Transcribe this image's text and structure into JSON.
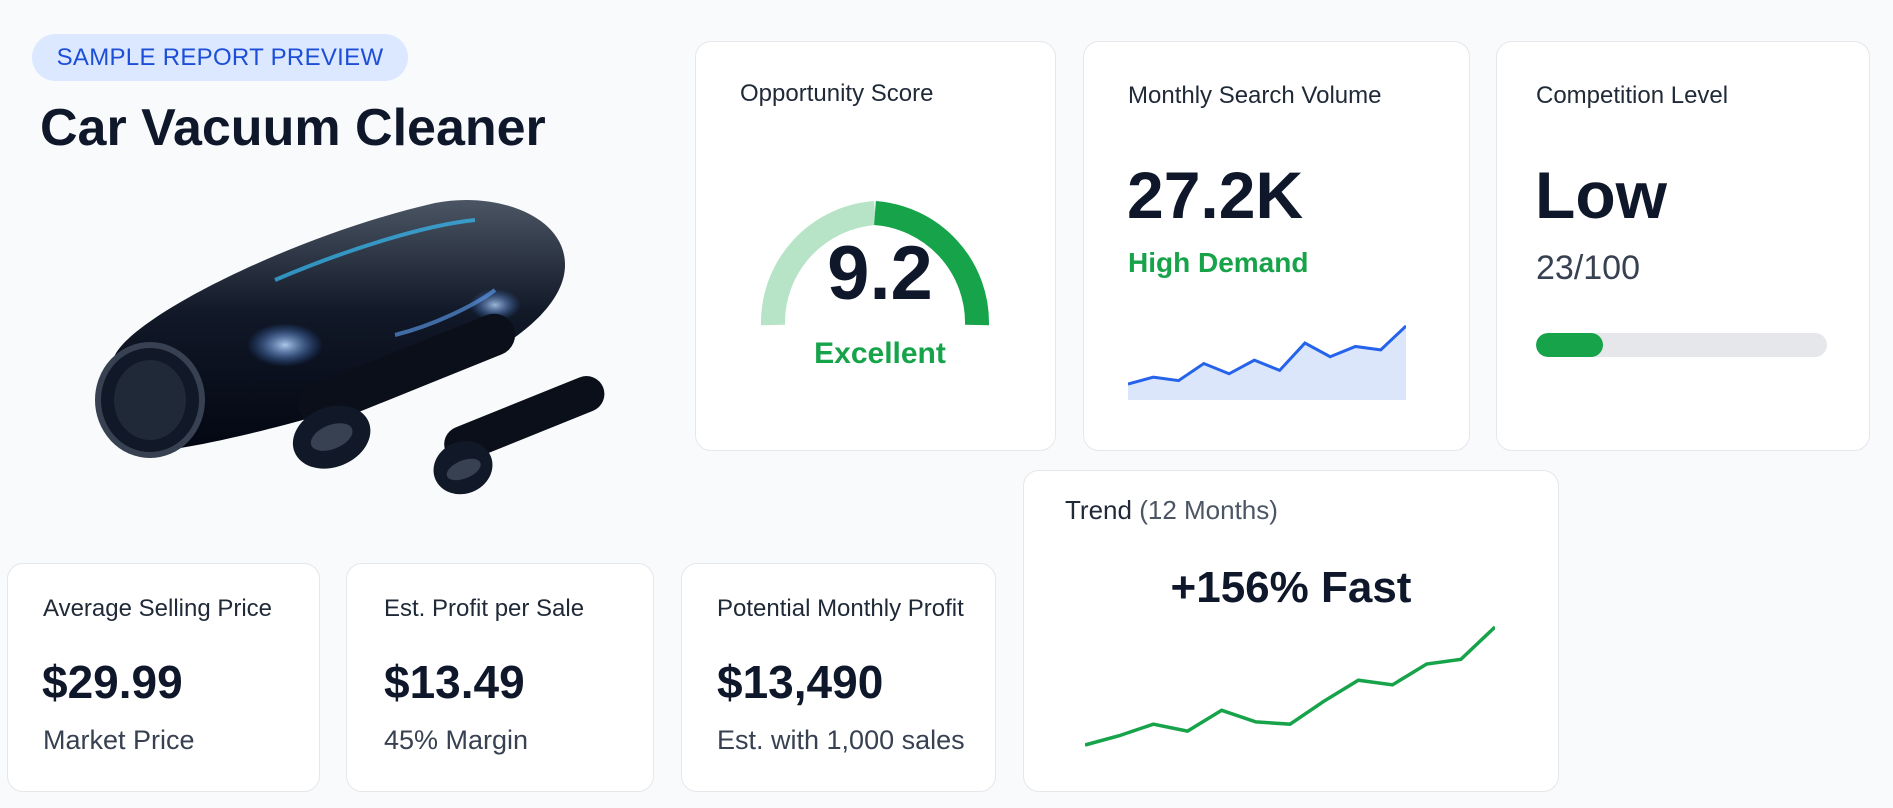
{
  "badge": "SAMPLE REPORT PREVIEW",
  "product": {
    "title": "Car Vacuum Cleaner"
  },
  "opportunity": {
    "label": "Opportunity Score",
    "score": "9.2",
    "rating": "Excellent",
    "score_fraction": 0.5
  },
  "search": {
    "label": "Monthly Search Volume",
    "value": "27.2K",
    "status": "High Demand",
    "sparkline": [
      14,
      18,
      16,
      26,
      20,
      28,
      22,
      38,
      30,
      36,
      34,
      48
    ]
  },
  "competition": {
    "label": "Competition Level",
    "value": "Low",
    "score_text": "23/100",
    "score": 23,
    "max": 100
  },
  "trend": {
    "label": "Trend",
    "period": "(12 Months)",
    "headline": "+156% Fast",
    "series": [
      10,
      18,
      28,
      22,
      40,
      30,
      28,
      48,
      66,
      62,
      80,
      84,
      112
    ]
  },
  "price": {
    "label": "Average Selling Price",
    "value": "$29.99",
    "sub": "Market Price"
  },
  "profit": {
    "label": "Est. Profit per Sale",
    "value": "$13.49",
    "sub": "45% Margin"
  },
  "monthly": {
    "label": "Potential Monthly Profit",
    "value": "$13,490",
    "sub": "Est. with 1,000 sales"
  },
  "colors": {
    "accent_green": "#16a34a",
    "light_green": "#b7e4c7",
    "blue": "#2563eb",
    "badge_bg": "#dbe8ff"
  }
}
